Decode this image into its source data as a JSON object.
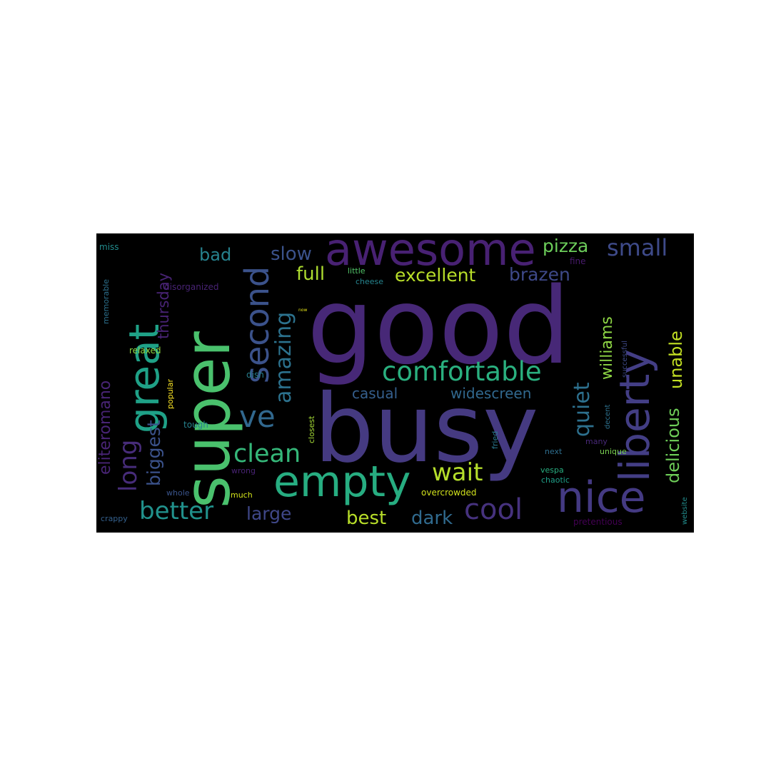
{
  "wordcloud": {
    "background": "#000000",
    "words": [
      {
        "text": "good",
        "color": "#472877"
      },
      {
        "text": "busy",
        "color": "#453a81"
      },
      {
        "text": "super",
        "color": "#4ac16d"
      },
      {
        "text": "awesome",
        "color": "#482173"
      },
      {
        "text": "great",
        "color": "#1fa187"
      },
      {
        "text": "liberty",
        "color": "#433e85"
      },
      {
        "text": "nice",
        "color": "#443a83"
      },
      {
        "text": "empty",
        "color": "#27ad81"
      },
      {
        "text": "comfortable",
        "color": "#2ab07f"
      },
      {
        "text": "second",
        "color": "#3b528b"
      },
      {
        "text": "cool",
        "color": "#46327e"
      },
      {
        "text": "ve",
        "color": "#31688e"
      },
      {
        "text": "clean",
        "color": "#35b779"
      },
      {
        "text": "wait",
        "color": "#b5de2b"
      },
      {
        "text": "better",
        "color": "#21918c"
      },
      {
        "text": "amazing",
        "color": "#2c728e"
      },
      {
        "text": "small",
        "color": "#3e4a89"
      },
      {
        "text": "quiet",
        "color": "#2d708e"
      },
      {
        "text": "long",
        "color": "#472c7a"
      },
      {
        "text": "excellent",
        "color": "#b8de29"
      },
      {
        "text": "delicious",
        "color": "#6ece58"
      },
      {
        "text": "pizza",
        "color": "#6ccd5a"
      },
      {
        "text": "unable",
        "color": "#c2df23"
      },
      {
        "text": "williams",
        "color": "#8ed645"
      },
      {
        "text": "biggest",
        "color": "#3b528b"
      },
      {
        "text": "eliteromano",
        "color": "#482475"
      },
      {
        "text": "thursday",
        "color": "#482374"
      },
      {
        "text": "brazen",
        "color": "#3e4989"
      },
      {
        "text": "full",
        "color": "#addc30"
      },
      {
        "text": "slow",
        "color": "#3b528b"
      },
      {
        "text": "bad",
        "color": "#26828e"
      },
      {
        "text": "large",
        "color": "#3f4788"
      },
      {
        "text": "best",
        "color": "#b8de29"
      },
      {
        "text": "dark",
        "color": "#306a8e"
      },
      {
        "text": "casual",
        "color": "#355f8d"
      },
      {
        "text": "widescreen",
        "color": "#31688e"
      },
      {
        "text": "miss",
        "color": "#228c8d"
      },
      {
        "text": "memorable",
        "color": "#2d718e"
      },
      {
        "text": "disorganized",
        "color": "#482374"
      },
      {
        "text": "little",
        "color": "#52c569"
      },
      {
        "text": "cheese",
        "color": "#25848e"
      },
      {
        "text": "fine",
        "color": "#481a6c"
      },
      {
        "text": "now",
        "color": "#e5e419"
      },
      {
        "text": "relaxed",
        "color": "#8fd744"
      },
      {
        "text": "dish",
        "color": "#277f8e"
      },
      {
        "text": "popular",
        "color": "#fde725"
      },
      {
        "text": "tough",
        "color": "#26828e"
      },
      {
        "text": "closest",
        "color": "#a5db36"
      },
      {
        "text": "successful",
        "color": "#3e4a89"
      },
      {
        "text": "decent",
        "color": "#2d718e"
      },
      {
        "text": "many",
        "color": "#482878"
      },
      {
        "text": "fried",
        "color": "#2a788e"
      },
      {
        "text": "next",
        "color": "#2e6e8e"
      },
      {
        "text": "unique",
        "color": "#7ad151"
      },
      {
        "text": "wrong",
        "color": "#482374"
      },
      {
        "text": "vespa",
        "color": "#28ae80"
      },
      {
        "text": "whole",
        "color": "#3a548c"
      },
      {
        "text": "chaotic",
        "color": "#1f9f88"
      },
      {
        "text": "much",
        "color": "#d2e21b"
      },
      {
        "text": "overcrowded",
        "color": "#d0e11c"
      },
      {
        "text": "crappy",
        "color": "#34608d"
      },
      {
        "text": "pretentious",
        "color": "#440154"
      },
      {
        "text": "website",
        "color": "#228d8d"
      }
    ]
  }
}
